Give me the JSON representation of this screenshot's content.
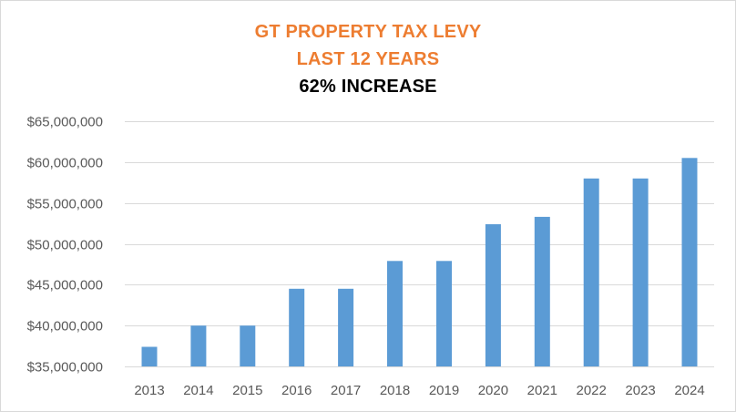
{
  "chart_data": {
    "type": "bar",
    "title_lines": [
      "GT PROPERTY TAX LEVY",
      "LAST 12 YEARS",
      "62% INCREASE"
    ],
    "title_colors": [
      "#ed7d31",
      "#ed7d31",
      "#000000"
    ],
    "categories": [
      "2013",
      "2014",
      "2015",
      "2016",
      "2017",
      "2018",
      "2019",
      "2020",
      "2021",
      "2022",
      "2023",
      "2024"
    ],
    "series": [
      {
        "name": "Property Tax Levy",
        "color": "#5b9bd5",
        "values": [
          37400000,
          40000000,
          40000000,
          44500000,
          44500000,
          47900000,
          47900000,
          52400000,
          53300000,
          58000000,
          58000000,
          60500000
        ]
      }
    ],
    "xlabel": "",
    "ylabel": "",
    "ylim": [
      35000000,
      65000000
    ],
    "yticks": [
      35000000,
      40000000,
      45000000,
      50000000,
      55000000,
      60000000,
      65000000
    ],
    "ytick_labels": [
      "$35,000,000",
      "$40,000,000",
      "$45,000,000",
      "$50,000,000",
      "$55,000,000",
      "$60,000,000",
      "$65,000,000"
    ],
    "grid": true,
    "gridline_color": "#d9d9d9",
    "legend": "none"
  }
}
